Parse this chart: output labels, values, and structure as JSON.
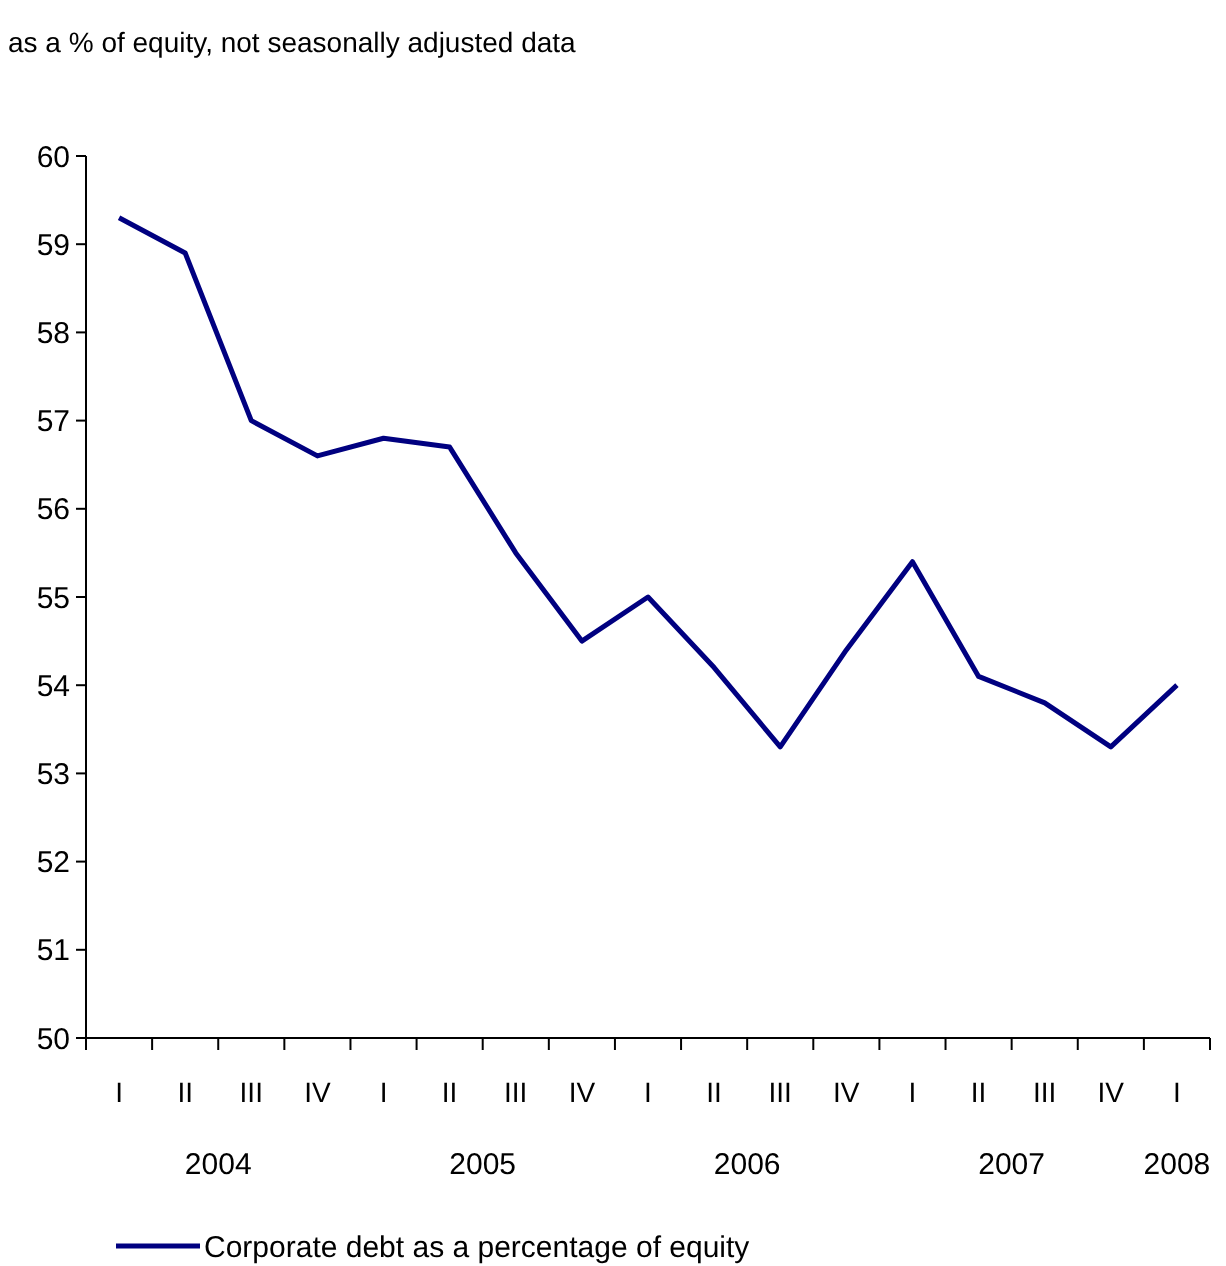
{
  "chart_data": {
    "type": "line",
    "title": "as a % of equity, not seasonally adjusted data",
    "categories": [
      "I",
      "II",
      "III",
      "IV",
      "I",
      "II",
      "III",
      "IV",
      "I",
      "II",
      "III",
      "IV",
      "I",
      "II",
      "III",
      "IV",
      "I"
    ],
    "series": [
      {
        "name": "Corporate debt as a percentage of equity",
        "color": "#000080",
        "values": [
          59.3,
          58.9,
          57.0,
          56.6,
          56.8,
          56.7,
          55.5,
          54.5,
          55.0,
          54.2,
          53.3,
          54.4,
          55.4,
          54.1,
          53.8,
          53.3,
          54.0
        ]
      }
    ],
    "ylim": [
      50,
      60
    ],
    "yticks": [
      50,
      51,
      52,
      53,
      54,
      55,
      56,
      57,
      58,
      59,
      60
    ],
    "annotations": [
      "2004",
      "2005",
      "2006",
      "2007",
      "2008"
    ],
    "grid": false,
    "legend": "bottom",
    "marker": "none",
    "line_style": "solid"
  }
}
